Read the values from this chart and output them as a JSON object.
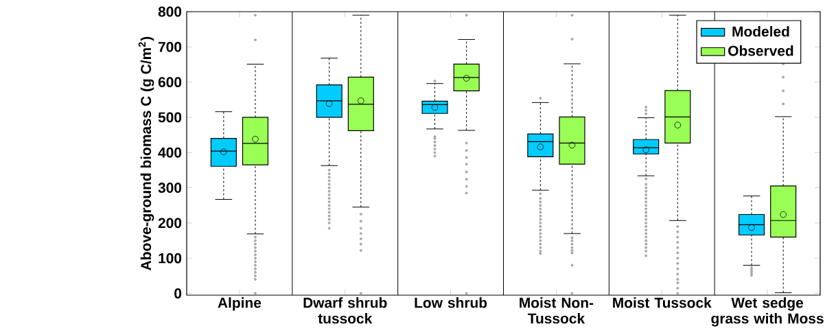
{
  "chart_data": {
    "type": "box",
    "ylabel": "Above-ground biomass C (g C/m$^{2}$)",
    "categories": [
      "Alpine",
      "Dwarf shrub tussock",
      "Low shrub",
      "Moist Non-Tussock",
      "Moist Tussock",
      "Wet sedge grass with Moss"
    ],
    "series": [
      {
        "name": "Modeled",
        "color": "#00ccff",
        "boxes": [
          {
            "low": 267,
            "q1": 361,
            "median": 404,
            "q3": 440,
            "high": 516,
            "mean": 402
          },
          {
            "low": 363,
            "q1": 500,
            "median": 547,
            "q3": 592,
            "high": 668,
            "mean": 539,
            "outliers": [
              350,
              340,
              330,
              320,
              310,
              300,
              290,
              280,
              270,
              260,
              250,
              240,
              230,
              220,
              210,
              200,
              185
            ]
          },
          {
            "low": 467,
            "q1": 511,
            "median": 536,
            "q3": 546,
            "high": 596,
            "mean": 528,
            "outliers": [
              603,
              445,
              440,
              430,
              420,
              410,
              400,
              390
            ]
          },
          {
            "low": 293,
            "q1": 388,
            "median": 431,
            "q3": 453,
            "high": 542,
            "mean": 416,
            "outliers": [
              554,
              283,
              270,
              260,
              250,
              240,
              230,
              220,
              210,
              200,
              190,
              180,
              170,
              160,
              150,
              140,
              130,
              120,
              113
            ]
          },
          {
            "low": 334,
            "q1": 396,
            "median": 414,
            "q3": 437,
            "high": 499,
            "mean": 408,
            "outliers": [
              529,
              520,
              510,
              325,
              310,
              300,
              290,
              280,
              270,
              260,
              250,
              240,
              230,
              220,
              210,
              200,
              190,
              180,
              170,
              160,
              150,
              140,
              130,
              120,
              107
            ]
          },
          {
            "low": 80,
            "q1": 166,
            "median": 195,
            "q3": 224,
            "high": 277,
            "mean": 187,
            "outliers": [
              74,
              68,
              62,
              56,
              51
            ]
          }
        ]
      },
      {
        "name": "Observed",
        "color": "#99ff55",
        "boxes": [
          {
            "low": 169,
            "q1": 365,
            "median": 426,
            "q3": 500,
            "high": 651,
            "mean": 438,
            "outliers": [
              790,
              720,
              160,
              150,
              140,
              130,
              120,
              110,
              100,
              90,
              80,
              70,
              60,
              50,
              40,
              0
            ]
          },
          {
            "low": 245,
            "q1": 462,
            "median": 537,
            "q3": 614,
            "high": 790,
            "mean": 547,
            "outliers": [
              225,
              205,
              185,
              170,
              155,
              140,
              122,
              0
            ]
          },
          {
            "low": 463,
            "q1": 575,
            "median": 613,
            "q3": 651,
            "high": 721,
            "mean": 611,
            "outliers": [
              790,
              427,
              406,
              386,
              367,
              345,
              324,
              304,
              285,
              0
            ]
          },
          {
            "low": 170,
            "q1": 367,
            "median": 427,
            "q3": 501,
            "high": 652,
            "mean": 421,
            "outliers": [
              790,
              722,
              158,
              150,
              140,
              130,
              122,
              115,
              80,
              0
            ]
          },
          {
            "low": 207,
            "q1": 427,
            "median": 501,
            "q3": 576,
            "high": 790,
            "mean": 478,
            "outliers": [
              190,
              175,
              160,
              145,
              130,
              115,
              100,
              85,
              70,
              55,
              40,
              30,
              15,
              0
            ]
          },
          {
            "low": 2,
            "q1": 160,
            "median": 207,
            "q3": 305,
            "high": 502,
            "mean": 224,
            "outliers": [
              652,
              614,
              575,
              538
            ]
          }
        ]
      }
    ],
    "ylim": [
      -5,
      800
    ],
    "yticks": [
      0,
      100,
      200,
      300,
      400,
      500,
      600,
      700,
      800
    ],
    "legend": "top right",
    "grid": false
  }
}
